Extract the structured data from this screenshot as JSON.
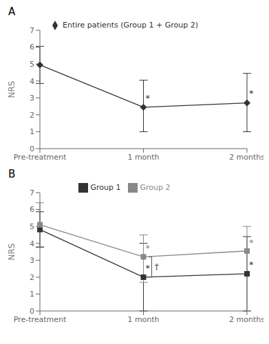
{
  "chart_data": [
    {
      "type": "line",
      "title": "A",
      "categories": [
        "Pre-treatment",
        "1 month",
        "2 months"
      ],
      "ylabel": "NRS",
      "ylim": [
        0,
        7
      ],
      "yticks": [
        0,
        1,
        2,
        3,
        4,
        5,
        6,
        7
      ],
      "grid": false,
      "legend": "top",
      "series": [
        {
          "name": "Entire patients (Group 1 + Group 2)",
          "color": "#333333",
          "marker": "diamond",
          "values": [
            4.95,
            2.45,
            2.7
          ],
          "error_lower": [
            1.1,
            1.45,
            1.7
          ],
          "error_upper": [
            1.1,
            1.6,
            1.75
          ],
          "annotations": [
            {
              "x": "1 month",
              "y": 2.82,
              "text": "*"
            },
            {
              "x": "2 months",
              "y": 3.08,
              "text": "*"
            }
          ]
        }
      ]
    },
    {
      "type": "line",
      "title": "B",
      "categories": [
        "Pre-treatment",
        "1 month",
        "2 months"
      ],
      "ylabel": "NRS",
      "ylim": [
        0,
        7
      ],
      "yticks": [
        0,
        1,
        2,
        3,
        4,
        5,
        6,
        7
      ],
      "grid": false,
      "legend": "top",
      "series": [
        {
          "name": "Group 1",
          "color": "#333333",
          "marker": "square",
          "values": [
            4.82,
            2.0,
            2.2
          ],
          "error_lower": [
            1.05,
            2.0,
            2.2
          ],
          "error_upper": [
            1.05,
            2.0,
            2.2
          ],
          "annotations": [
            {
              "x": "1 month",
              "y": 2.35,
              "text": "*"
            },
            {
              "x": "2 months",
              "y": 2.55,
              "text": "*"
            }
          ]
        },
        {
          "name": "Group 2",
          "color": "#888888",
          "marker": "square",
          "values": [
            5.1,
            3.2,
            3.55
          ],
          "error_lower": [
            1.3,
            1.5,
            3.55
          ],
          "error_upper": [
            1.3,
            1.3,
            1.45
          ],
          "annotations": [
            {
              "x": "1 month",
              "y": 3.55,
              "text": "*"
            },
            {
              "x": "2 months",
              "y": 3.88,
              "text": "*"
            }
          ]
        }
      ],
      "bracket": {
        "x": "1 month",
        "y_from": 2.0,
        "y_to": 3.2,
        "text": "†"
      }
    }
  ]
}
